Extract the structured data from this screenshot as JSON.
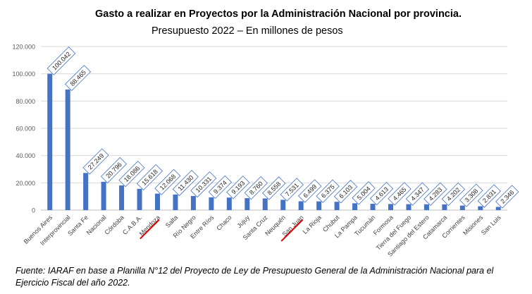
{
  "title": "Gasto a realizar en Proyectos por la Administración Nacional por provincia.",
  "subtitle": "Presupuesto 2022 – En millones de pesos",
  "source": "Fuente: IARAF en base a Planilla N°12 del Proyecto de Ley de Presupuesto General de la Administración Nacional para el Ejercicio Fiscal del año 2022.",
  "colors": {
    "bar": "#4472c4",
    "grid": "#d9d9d9",
    "highlight": "#e00000",
    "label_border": "#4472c4"
  },
  "chart_data": {
    "type": "bar",
    "title": "Gasto a realizar en Proyectos por la Administración Nacional por provincia.",
    "subtitle": "Presupuesto 2022 – En millones de pesos",
    "xlabel": "",
    "ylabel": "",
    "ylim": [
      0,
      120000
    ],
    "yticks": [
      0,
      20000,
      40000,
      60000,
      80000,
      100000,
      120000
    ],
    "ytick_labels": [
      "0",
      "20.000",
      "40.000",
      "60.000",
      "80.000",
      "100.000",
      "120.000"
    ],
    "grid": true,
    "categories": [
      "Buenos Aires",
      "Interprovincial",
      "Santa Fe",
      "Nacional",
      "Córdoba",
      "C.A.B.A.",
      "Mendoza",
      "Salta",
      "Río Negro",
      "Entre Ríos",
      "Chaco",
      "Jujuy",
      "Santa Cruz",
      "Neuquén",
      "San Juan",
      "La Rioja",
      "Chubut",
      "La Pampa",
      "Tucumán",
      "Formosa",
      "Tierra del Fuego",
      "Santiago del Estero",
      "Catamarca",
      "Corrientes",
      "Misiones",
      "San Luis"
    ],
    "values": [
      100042,
      88465,
      27249,
      20796,
      18086,
      15618,
      12068,
      11430,
      10331,
      9374,
      9193,
      8760,
      8558,
      7531,
      6499,
      6375,
      6103,
      5004,
      4613,
      4465,
      4347,
      4283,
      4202,
      3308,
      2831,
      2346
    ],
    "data_labels": [
      "100.042",
      "88.465",
      "27.249",
      "20.796",
      "18.086",
      "15.618",
      "12.068",
      "11.430",
      "10.331",
      "9.374",
      "9.193",
      "8.760",
      "8.558",
      "7.531",
      "6.499",
      "6.375",
      "6.103",
      "5.004",
      "4.613",
      "4.465",
      "4.347",
      "4.283",
      "4.202",
      "3.308",
      "2.831",
      "2.346"
    ],
    "highlighted": [
      "Mendoza",
      "San Juan"
    ]
  }
}
